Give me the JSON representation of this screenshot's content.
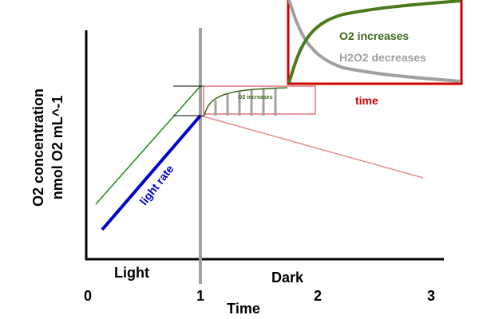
{
  "axes": {
    "y_label_line1": "O2 concentration",
    "y_label_line2": "nmol O2 mL^-1",
    "x_label": "Time",
    "x_tick_labels": [
      "0",
      "1",
      "2",
      "3"
    ]
  },
  "phases": {
    "light": "Light",
    "dark": "Dark"
  },
  "annotations": {
    "light_rate": "light rate",
    "small_inset": "O2 increases"
  },
  "inset": {
    "o2": "O2 increases",
    "h2o2": "H2O2 decreases",
    "x_label": "time"
  }
}
